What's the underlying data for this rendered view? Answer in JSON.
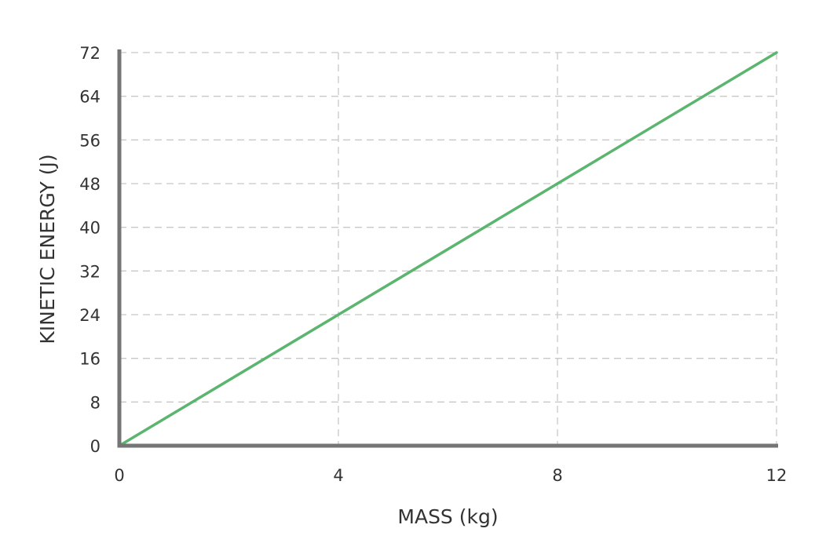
{
  "chart_data": {
    "type": "line",
    "title": "",
    "xlabel": "MASS (kg)",
    "ylabel": "KINETIC ENERGY (J)",
    "xlim": [
      0,
      12
    ],
    "ylim": [
      0,
      72
    ],
    "x_ticks": [
      0,
      4,
      8,
      12
    ],
    "y_ticks": [
      0,
      8,
      16,
      24,
      32,
      40,
      48,
      56,
      64,
      72
    ],
    "x_tick_labels": [
      "0",
      "4",
      "8",
      "12"
    ],
    "y_tick_labels": [
      "0",
      "8",
      "16",
      "24",
      "32",
      "40",
      "48",
      "56",
      "64",
      "72"
    ],
    "grid": true,
    "grid_style": "dashed",
    "series": [
      {
        "x": [
          0,
          12
        ],
        "y": [
          0,
          72
        ],
        "color": "#5cb56e"
      }
    ],
    "colors": {
      "axis": "#757575",
      "grid": "#c8c8c8",
      "text": "#333333"
    }
  }
}
